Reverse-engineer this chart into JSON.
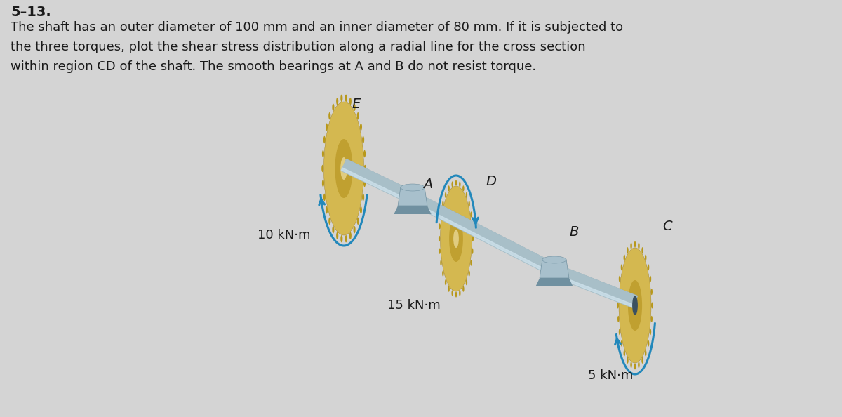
{
  "bg_color": "#d4d4d4",
  "title_number": "5–13.",
  "description_lines": [
    "The shaft has an outer diameter of 100 mm and an inner diameter of 80 mm. If it is subjected to",
    "the three torques, plot the shear stress distribution along a radial line for the cross section",
    "within region CD of the shaft. The smooth bearings at A and B do not resist torque."
  ],
  "shaft_color": "#a8bfc8",
  "shaft_highlight": "#cce0ea",
  "shaft_shadow": "#7090a0",
  "gear_outer_color": "#d4b850",
  "gear_mid_color": "#c0a030",
  "gear_inner_color": "#b89020",
  "gear_hub_color": "#e0cc80",
  "bearing_color": "#a8c0cc",
  "bearing_shadow": "#7090a0",
  "arrow_color": "#2288bb",
  "text_color": "#1a1a1a",
  "label_fontsize": 14,
  "torque_fontsize": 13,
  "desc_fontsize": 13
}
